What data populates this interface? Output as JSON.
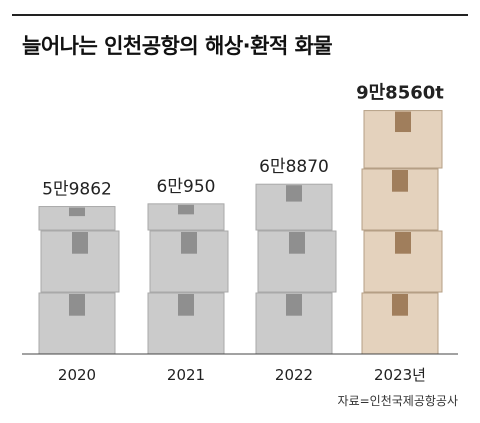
{
  "title": "늘어나는 인천공항의 해상·환적 화물",
  "source": "자료=인천국제공항공사",
  "colors": {
    "box_fill": "#cbcbcb",
    "box_stroke": "#a9a9a9",
    "tape": "#8f8f8f",
    "highlight_box_fill": "#e4d2bd",
    "highlight_box_stroke": "#b59f85",
    "highlight_tape": "#a07e5c",
    "axis": "#444444"
  },
  "chart_data": {
    "type": "bar",
    "style": "stacked-box pictogram",
    "title": "늘어나는 인천공항의 해상·환적 화물",
    "categories": [
      "2020",
      "2021",
      "2022",
      "2023년"
    ],
    "values": [
      59862,
      60950,
      68870,
      98560
    ],
    "data_labels": [
      "5만9862",
      "6만950",
      "6만8870",
      "9만8560t"
    ],
    "highlight_index": 3,
    "xlabel": "",
    "ylabel": "",
    "ylim": [
      0,
      100000
    ],
    "grid": false,
    "legend": "none"
  }
}
